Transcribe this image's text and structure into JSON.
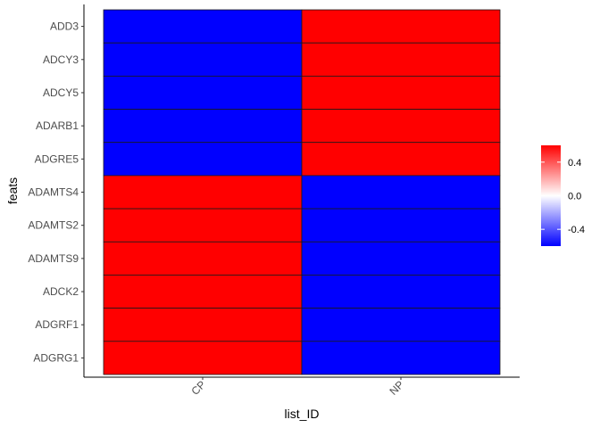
{
  "chart_data": {
    "type": "heatmap",
    "xlabel": "list_ID",
    "ylabel": "feats",
    "x_categories": [
      "CP",
      "NP"
    ],
    "y_categories": [
      "ADD3",
      "ADCY3",
      "ADCY5",
      "ADARB1",
      "ADGRE5",
      "ADAMTS4",
      "ADAMTS2",
      "ADAMTS9",
      "ADCK2",
      "ADGRF1",
      "ADGRG1"
    ],
    "values": [
      [
        -0.6,
        0.6
      ],
      [
        -0.6,
        0.6
      ],
      [
        -0.6,
        0.6
      ],
      [
        -0.6,
        0.6
      ],
      [
        -0.6,
        0.6
      ],
      [
        0.6,
        -0.6
      ],
      [
        0.6,
        -0.6
      ],
      [
        0.6,
        -0.6
      ],
      [
        0.6,
        -0.6
      ],
      [
        0.6,
        -0.6
      ],
      [
        0.6,
        -0.6
      ]
    ],
    "colorscale": {
      "low": "#0000ff",
      "mid": "#ffffff",
      "high": "#ff0000",
      "min": -0.6,
      "max": 0.6
    },
    "legend": {
      "position": "right",
      "ticks": [
        0.4,
        0.0,
        -0.4
      ],
      "tick_labels": [
        "0.4",
        "0.0",
        "-0.4"
      ]
    },
    "grid": false
  }
}
